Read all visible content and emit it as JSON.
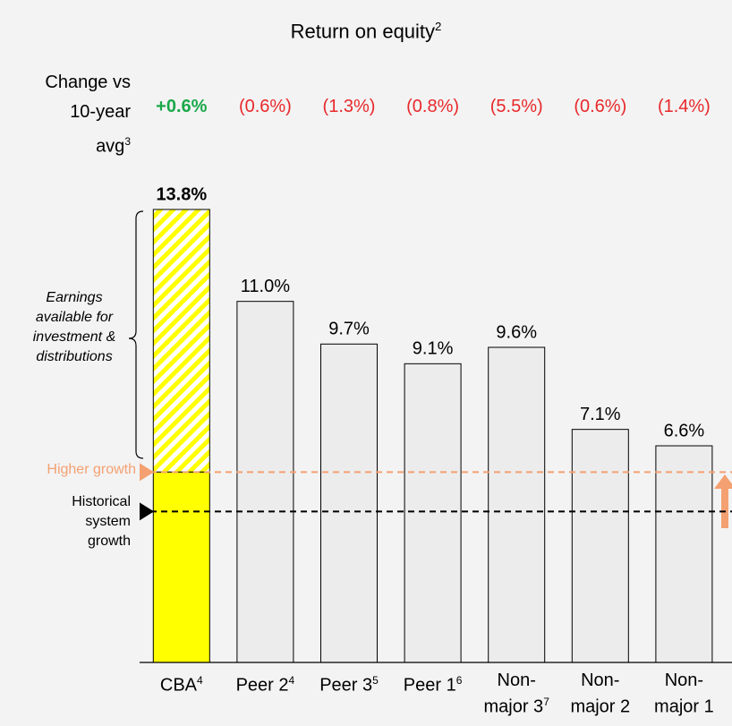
{
  "chart_data": {
    "type": "bar",
    "title": "Return on equity",
    "title_footnote": "2",
    "change_label": "Change vs 10-year avg",
    "change_footnote": "3",
    "changes": [
      0.6,
      -0.6,
      -1.3,
      -0.8,
      -5.5,
      -0.6,
      -1.4
    ],
    "change_labels": [
      "+0.6%",
      "(0.6%)",
      "(1.3%)",
      "(0.8%)",
      "(5.5%)",
      "(0.6%)",
      "(1.4%)"
    ],
    "positive_color": "#1aa84a",
    "negative_color": "#e8282b",
    "categories": [
      "CBA",
      "Peer 2",
      "Peer 3",
      "Peer 1",
      "Non-major 3",
      "Non-major 2",
      "Non-major 1"
    ],
    "footnotes": [
      "4",
      "4",
      "5",
      "6",
      "7",
      null,
      null
    ],
    "values": [
      13.8,
      11.0,
      9.7,
      9.1,
      9.6,
      7.1,
      6.6
    ],
    "value_labels": [
      "13.8%",
      "11.0%",
      "9.7%",
      "9.1%",
      "9.6%",
      "7.1%",
      "6.6%"
    ],
    "colors": [
      "#ffff00",
      "#ececec",
      "#ececec",
      "#ececec",
      "#ececec",
      "#ececec",
      "#ececec"
    ],
    "ylim": [
      0,
      13.8
    ],
    "reference_lines": [
      {
        "label": "Higher growth",
        "value": 5.8,
        "color": "#f4a071"
      },
      {
        "label": "Historical system growth",
        "value": 4.6,
        "color": "#000000"
      }
    ],
    "annotation": "Earnings available for investment & distributions"
  }
}
